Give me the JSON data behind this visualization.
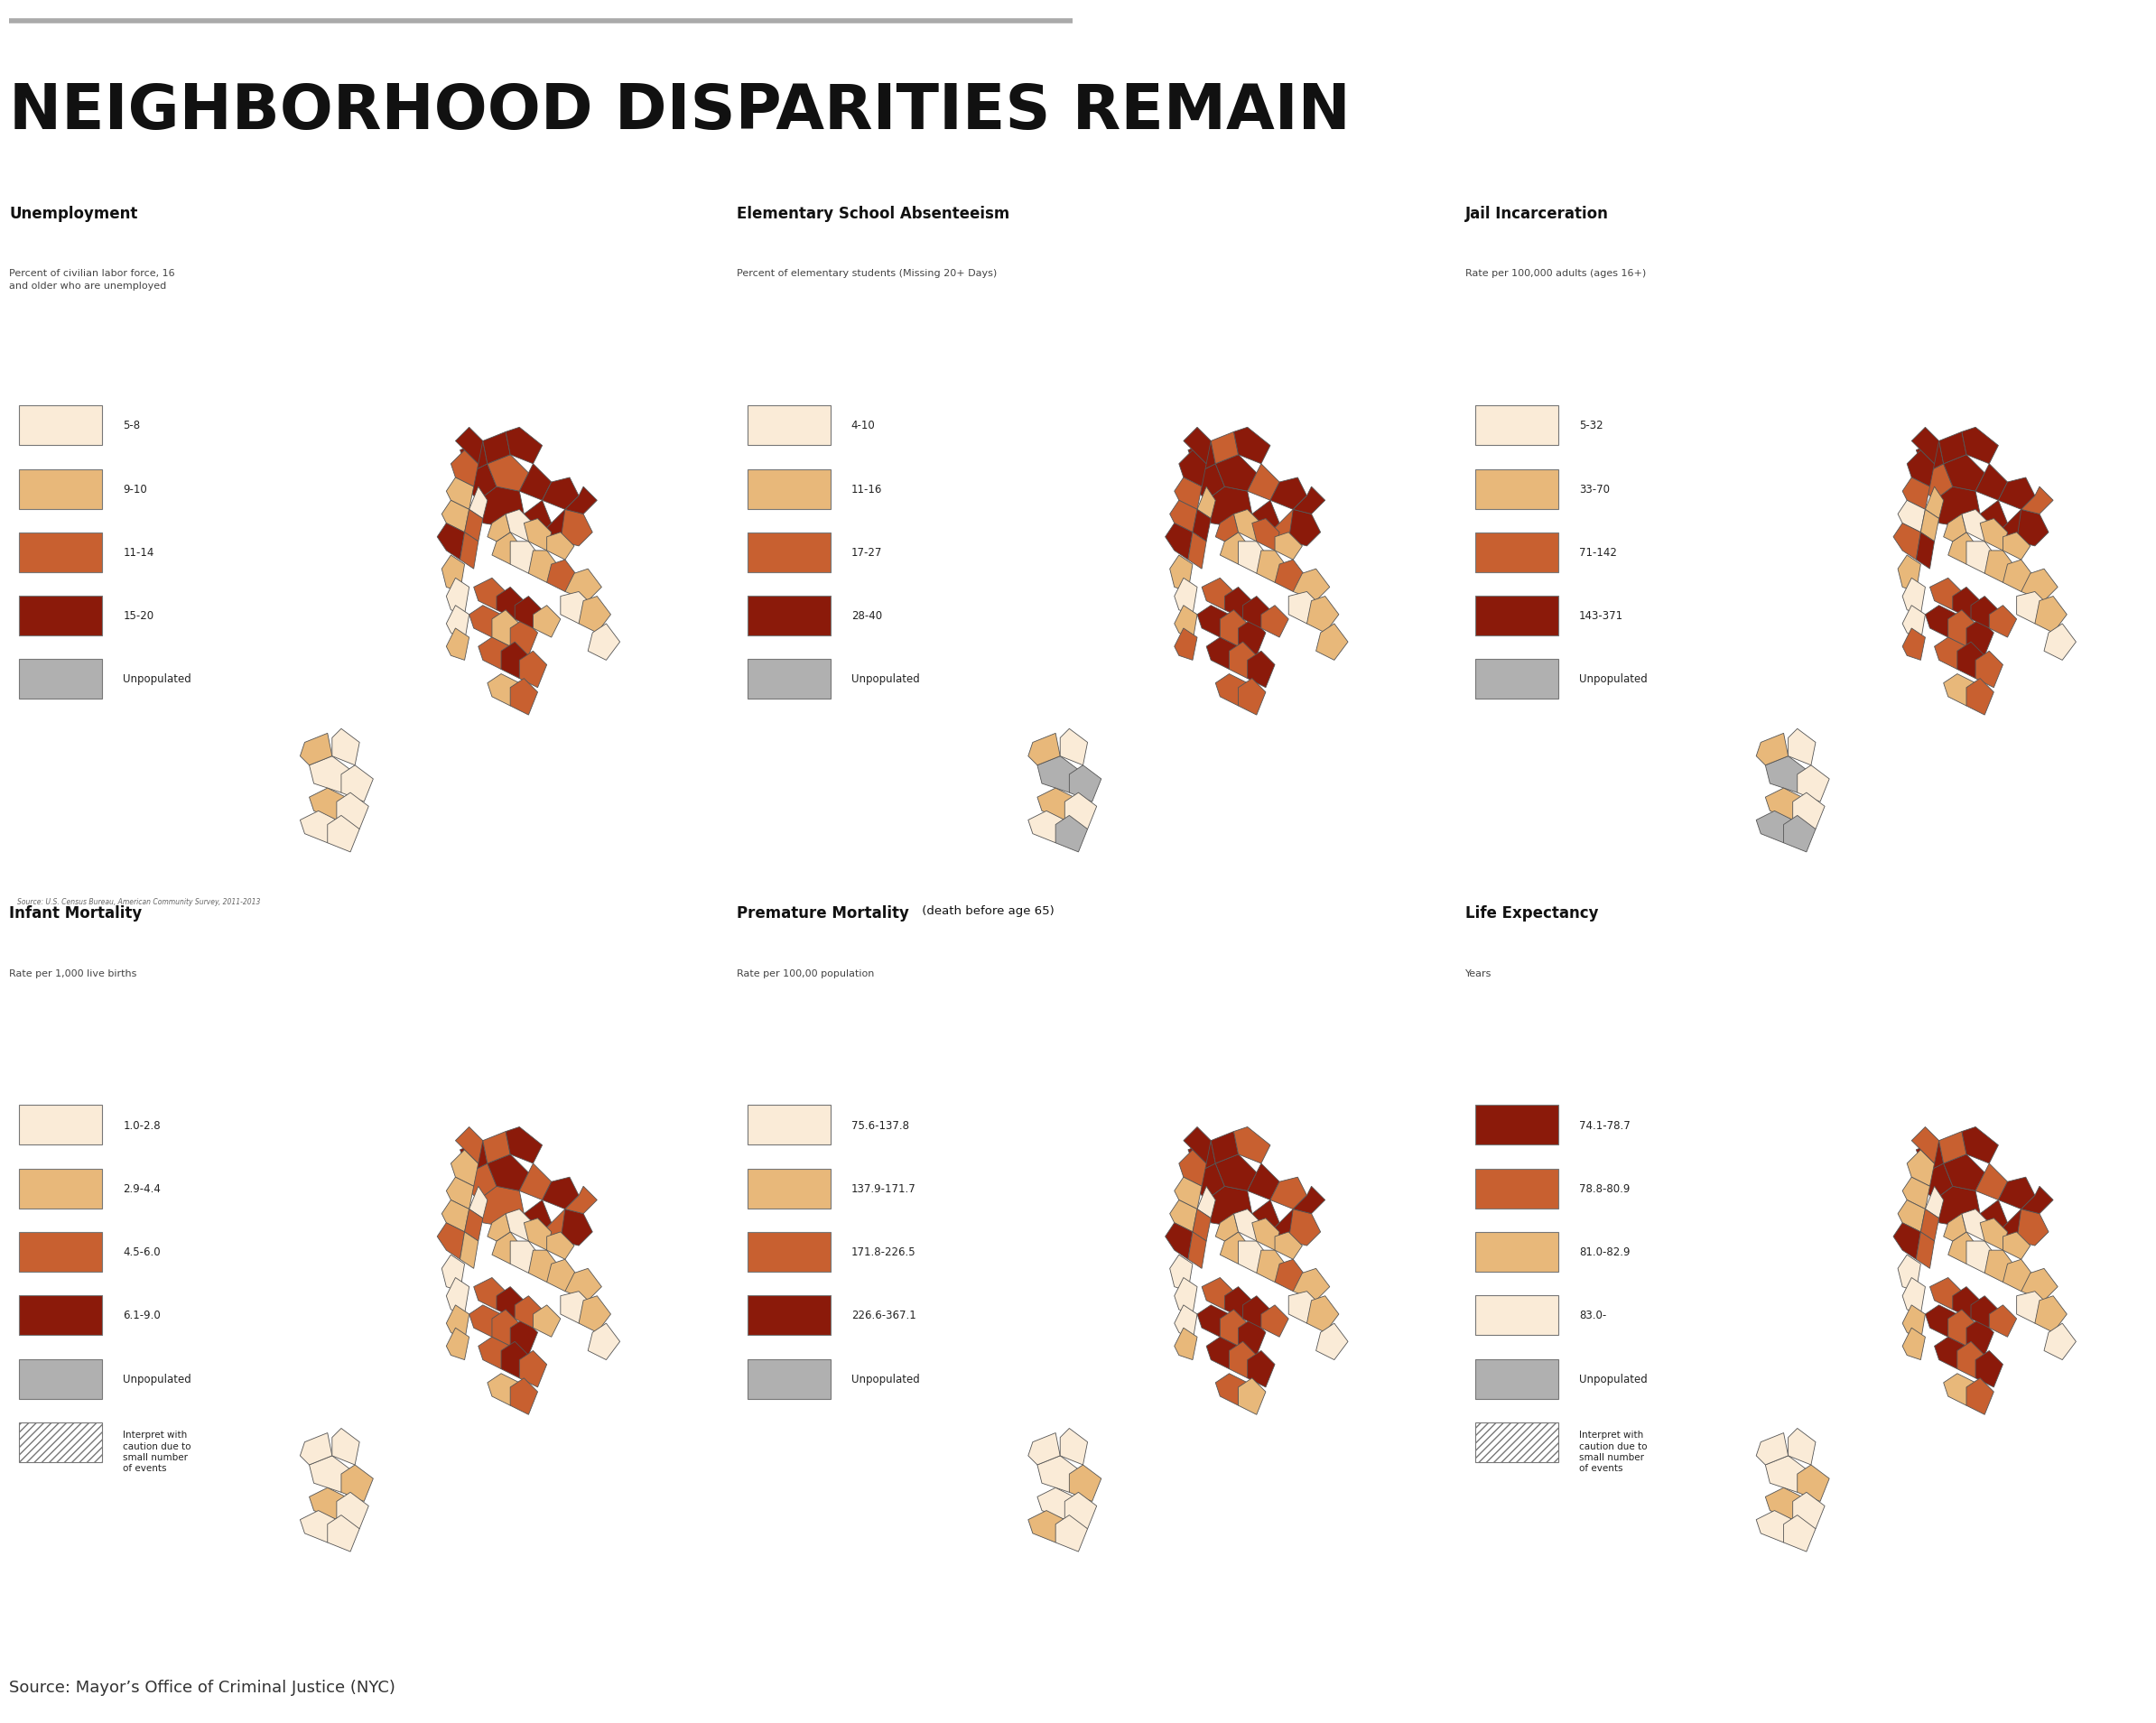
{
  "title": "NEIGHBORHOOD DISPARITIES REMAIN",
  "source": "Source: Mayor’s Office of Criminal Justice (NYC)",
  "background_color": "#ffffff",
  "title_color": "#000000",
  "header_line_color": "#aaaaaa",
  "panels": [
    {
      "id": 0,
      "title": "Unemployment",
      "title_bold": true,
      "title_suffix": "",
      "subtitle": "Percent of civilian labor force, 16\nand older who are unemployed",
      "footnote": "Source: U.S. Census Bureau, American Community Survey, 2011-2013",
      "legend": [
        {
          "label": "5-8",
          "color": "#faebd7"
        },
        {
          "label": "9-10",
          "color": "#e8b87a"
        },
        {
          "label": "11-14",
          "color": "#c86030"
        },
        {
          "label": "15-20",
          "color": "#8b1a0a"
        },
        {
          "label": "Unpopulated",
          "color": "#b0b0b0"
        }
      ],
      "has_hatch_legend": false,
      "map_colors": {
        "bronx": [
          3,
          3,
          3,
          2,
          3,
          2,
          3,
          3,
          3,
          3,
          3,
          3
        ],
        "manhattan": [
          2,
          3,
          1,
          0,
          1,
          2,
          3,
          2,
          1,
          0,
          0,
          1
        ],
        "queens": [
          1,
          0,
          1,
          1,
          0,
          1,
          2,
          1,
          0,
          1,
          0,
          1
        ],
        "brooklyn": [
          2,
          3,
          2,
          1,
          2,
          3,
          1,
          2,
          3,
          2,
          1,
          2
        ],
        "staten": [
          0,
          0,
          1,
          0,
          1,
          0,
          0,
          0
        ]
      }
    },
    {
      "id": 1,
      "title": "Elementary School Absenteeism",
      "title_bold": true,
      "title_suffix": "",
      "subtitle": "Percent of elementary students (Missing 20+ Days)",
      "footnote": "",
      "legend": [
        {
          "label": "4-10",
          "color": "#faebd7"
        },
        {
          "label": "11-16",
          "color": "#e8b87a"
        },
        {
          "label": "17-27",
          "color": "#c86030"
        },
        {
          "label": "28-40",
          "color": "#8b1a0a"
        },
        {
          "label": "Unpopulated",
          "color": "#b0b0b0"
        }
      ],
      "has_hatch_legend": false,
      "map_colors": {
        "bronx": [
          3,
          3,
          2,
          3,
          3,
          3,
          2,
          3,
          3,
          3,
          2,
          3
        ],
        "manhattan": [
          3,
          3,
          2,
          1,
          2,
          3,
          3,
          2,
          1,
          0,
          1,
          2
        ],
        "queens": [
          1,
          0,
          1,
          2,
          1,
          2,
          2,
          1,
          0,
          1,
          1,
          1
        ],
        "brooklyn": [
          2,
          3,
          3,
          2,
          3,
          3,
          2,
          3,
          2,
          3,
          2,
          2
        ],
        "staten": [
          4,
          4,
          1,
          0,
          1,
          0,
          0,
          4
        ]
      }
    },
    {
      "id": 2,
      "title": "Jail Incarceration",
      "title_bold": true,
      "title_suffix": "",
      "subtitle": "Rate per 100,000 adults (ages 16+)",
      "footnote": "",
      "legend": [
        {
          "label": "5-32",
          "color": "#faebd7"
        },
        {
          "label": "33-70",
          "color": "#e8b87a"
        },
        {
          "label": "71-142",
          "color": "#c86030"
        },
        {
          "label": "143-371",
          "color": "#8b1a0a"
        },
        {
          "label": "Unpopulated",
          "color": "#b0b0b0"
        }
      ],
      "has_hatch_legend": false,
      "map_colors": {
        "bronx": [
          3,
          3,
          3,
          3,
          2,
          3,
          3,
          3,
          2,
          3,
          3,
          3
        ],
        "manhattan": [
          3,
          3,
          2,
          1,
          0,
          1,
          2,
          3,
          1,
          0,
          0,
          2
        ],
        "queens": [
          1,
          0,
          1,
          1,
          0,
          1,
          1,
          1,
          0,
          1,
          0,
          1
        ],
        "brooklyn": [
          2,
          3,
          3,
          2,
          3,
          3,
          2,
          2,
          3,
          2,
          1,
          2
        ],
        "staten": [
          4,
          0,
          1,
          0,
          1,
          0,
          4,
          4
        ]
      }
    },
    {
      "id": 3,
      "title": "Infant Mortality",
      "title_bold": true,
      "title_suffix": "",
      "subtitle": "Rate per 1,000 live births",
      "footnote": "",
      "legend": [
        {
          "label": "1.0-2.8",
          "color": "#faebd7"
        },
        {
          "label": "2.9-4.4",
          "color": "#e8b87a"
        },
        {
          "label": "4.5-6.0",
          "color": "#c86030"
        },
        {
          "label": "6.1-9.0",
          "color": "#8b1a0a"
        },
        {
          "label": "Unpopulated",
          "color": "#b0b0b0"
        },
        {
          "label": "Interpret with\ncaution due to\nsmall number\nof events",
          "color": "hatch"
        }
      ],
      "has_hatch_legend": true,
      "map_colors": {
        "bronx": [
          2,
          3,
          2,
          3,
          2,
          3,
          2,
          3,
          2,
          3,
          2,
          3
        ],
        "manhattan": [
          1,
          2,
          1,
          0,
          1,
          2,
          2,
          1,
          0,
          0,
          1,
          1
        ],
        "queens": [
          1,
          0,
          1,
          1,
          0,
          1,
          1,
          1,
          0,
          1,
          0,
          1
        ],
        "brooklyn": [
          2,
          3,
          2,
          2,
          3,
          2,
          1,
          2,
          3,
          2,
          1,
          2
        ],
        "staten": [
          0,
          1,
          0,
          0,
          1,
          0,
          0,
          0
        ]
      }
    },
    {
      "id": 4,
      "title": "Premature Mortality",
      "title_bold": true,
      "title_suffix": " (death before age 65)",
      "subtitle": "Rate per 100,00 population",
      "footnote": "",
      "legend": [
        {
          "label": "75.6-137.8",
          "color": "#faebd7"
        },
        {
          "label": "137.9-171.7",
          "color": "#e8b87a"
        },
        {
          "label": "171.8-226.5",
          "color": "#c86030"
        },
        {
          "label": "226.6-367.1",
          "color": "#8b1a0a"
        },
        {
          "label": "Unpopulated",
          "color": "#b0b0b0"
        }
      ],
      "has_hatch_legend": false,
      "map_colors": {
        "bronx": [
          3,
          3,
          3,
          2,
          3,
          3,
          3,
          2,
          3,
          3,
          3,
          2
        ],
        "manhattan": [
          2,
          3,
          1,
          0,
          1,
          2,
          3,
          2,
          0,
          0,
          0,
          1
        ],
        "queens": [
          1,
          0,
          1,
          1,
          0,
          1,
          2,
          1,
          0,
          1,
          0,
          1
        ],
        "brooklyn": [
          2,
          3,
          3,
          2,
          3,
          3,
          2,
          3,
          2,
          3,
          2,
          1
        ],
        "staten": [
          0,
          1,
          0,
          0,
          0,
          0,
          1,
          0
        ]
      }
    },
    {
      "id": 5,
      "title": "Life Expectancy",
      "title_bold": true,
      "title_suffix": "",
      "subtitle": "Years",
      "footnote": "",
      "legend": [
        {
          "label": "74.1-78.7",
          "color": "#8b1a0a"
        },
        {
          "label": "78.8-80.9",
          "color": "#c86030"
        },
        {
          "label": "81.0-82.9",
          "color": "#e8b87a"
        },
        {
          "label": "83.0-",
          "color": "#faebd7"
        },
        {
          "label": "Unpopulated",
          "color": "#b0b0b0"
        },
        {
          "label": "Interpret with\ncaution due to\nsmall number\nof events",
          "color": "hatch"
        }
      ],
      "has_hatch_legend": true,
      "map_colors": {
        "bronx": [
          0,
          0,
          0,
          1,
          0,
          0,
          1,
          0,
          0,
          0,
          1,
          0
        ],
        "manhattan": [
          2,
          1,
          2,
          3,
          2,
          1,
          0,
          1,
          3,
          3,
          2,
          2
        ],
        "queens": [
          2,
          3,
          2,
          2,
          3,
          2,
          2,
          2,
          3,
          2,
          3,
          2
        ],
        "brooklyn": [
          1,
          0,
          0,
          1,
          0,
          0,
          1,
          0,
          1,
          0,
          2,
          1
        ],
        "staten": [
          3,
          2,
          3,
          3,
          2,
          3,
          3,
          3
        ]
      }
    }
  ]
}
